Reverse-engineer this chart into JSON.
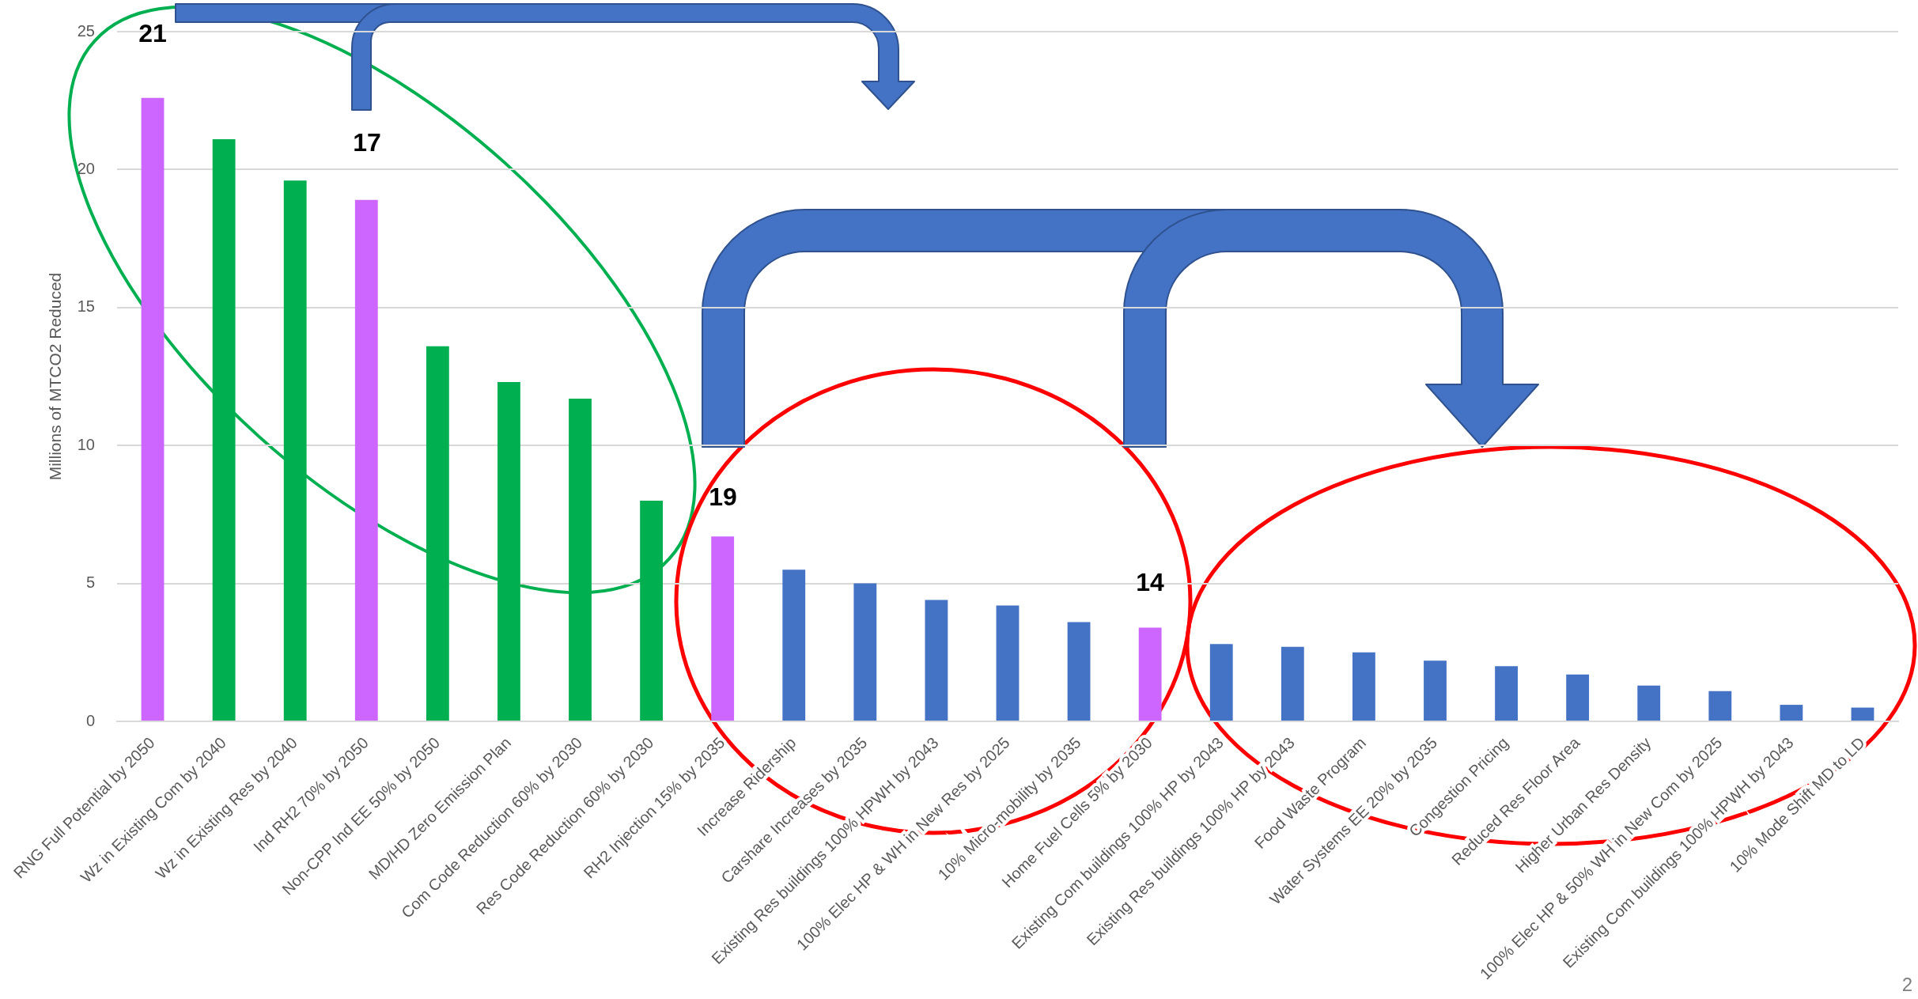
{
  "chart_data": {
    "type": "bar",
    "ylabel": "Millions of MTCO2 Reduced",
    "categories": [
      "RNG Full Potential by 2050",
      "Wz in Existing Com by 2040",
      "Wz in Existing Res by 2040",
      "Ind RH2 70% by 2050",
      "Non-CPP Ind EE 50% by 2050",
      "MD/HD Zero Emission Plan",
      "Com Code Reduction 60% by 2030",
      "Res Code Reduction 60% by 2030",
      "RH2 Injection 15% by 2035",
      "Increase Ridership",
      "Carshare Increases by 2035",
      "Existing Res buildings 100% HPWH by 2043",
      "100% Elec HP & WH in New Res by 2025",
      "10% Micro-mobility by 2035",
      "Home Fuel Cells 5% by 2030",
      "Existing Com buildings 100% HP by 2043",
      "Existing Res buildings 100% HP by 2043",
      "Food Waste Program",
      "Water Systems EE 20% by 2035",
      "Congestion Pricing",
      "Reduced Res Floor Area",
      "Higher Urban Res Density",
      "100% Elec HP & 50% WH in New Com by 2025",
      "Existing Com buildings 100% HPWH by 2043",
      "10% Mode Shift MD to LD"
    ],
    "values": [
      22.6,
      21.1,
      19.6,
      18.9,
      13.6,
      12.3,
      11.7,
      8.0,
      6.7,
      5.5,
      5.0,
      4.4,
      4.2,
      3.6,
      3.4,
      2.8,
      2.7,
      2.5,
      2.2,
      2.0,
      1.7,
      1.3,
      1.1,
      0.6,
      0.5
    ],
    "colors": [
      "#cc66ff",
      "#00b050",
      "#00b050",
      "#cc66ff",
      "#00b050",
      "#00b050",
      "#00b050",
      "#00b050",
      "#cc66ff",
      "#4472c4",
      "#4472c4",
      "#4472c4",
      "#4472c4",
      "#4472c4",
      "#cc66ff",
      "#4472c4",
      "#4472c4",
      "#4472c4",
      "#4472c4",
      "#4472c4",
      "#4472c4",
      "#4472c4",
      "#4472c4",
      "#4472c4",
      "#4472c4"
    ],
    "ylim": [
      0,
      25
    ],
    "yticks": [
      0,
      5,
      10,
      15,
      20,
      25
    ],
    "grid": "y",
    "annotations": [
      "21",
      "17",
      "19",
      "14",
      "2"
    ]
  }
}
